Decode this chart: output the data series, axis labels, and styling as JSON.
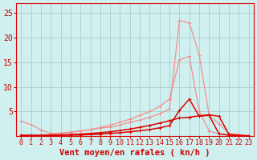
{
  "bg_color": "#cff0ee",
  "grid_color": "#a8cece",
  "x_values": [
    0,
    1,
    2,
    3,
    4,
    5,
    6,
    7,
    8,
    9,
    10,
    11,
    12,
    13,
    14,
    15,
    16,
    17,
    18,
    19,
    20,
    21,
    22,
    23
  ],
  "x_labels": [
    "0",
    "1",
    "2",
    "3",
    "4",
    "5",
    "6",
    "7",
    "8",
    "9",
    "10",
    "11",
    "12",
    "13",
    "14",
    "15",
    "16",
    "17",
    "18",
    "19",
    "20",
    "21",
    "22",
    "23"
  ],
  "ylim": [
    0,
    27
  ],
  "yticks": [
    5,
    10,
    15,
    20,
    25
  ],
  "line_light_peak_x": [
    0,
    1,
    2,
    3,
    4,
    5,
    6,
    7,
    8,
    9,
    10,
    11,
    12,
    13,
    14,
    15,
    16,
    17,
    18,
    19,
    20,
    21,
    22,
    23
  ],
  "line_light_peak_y": [
    3.0,
    2.3,
    1.2,
    0.5,
    0.6,
    0.8,
    1.0,
    1.3,
    1.6,
    1.8,
    2.2,
    2.8,
    3.2,
    3.8,
    4.5,
    5.5,
    23.5,
    23.0,
    16.5,
    4.2,
    2.5,
    0.5,
    0.3,
    0.1
  ],
  "line_light_ramp_x": [
    0,
    1,
    2,
    3,
    4,
    5,
    6,
    7,
    8,
    9,
    10,
    11,
    12,
    13,
    14,
    15,
    16,
    17,
    18,
    19,
    20,
    21,
    22,
    23
  ],
  "line_light_ramp_y": [
    0.1,
    0.15,
    0.2,
    0.3,
    0.5,
    0.7,
    1.0,
    1.3,
    1.7,
    2.2,
    2.8,
    3.4,
    4.2,
    5.0,
    6.0,
    7.5,
    15.5,
    16.2,
    5.0,
    1.0,
    0.4,
    0.2,
    0.1,
    0.0
  ],
  "line_dark_main_x": [
    0,
    1,
    2,
    3,
    4,
    5,
    6,
    7,
    8,
    9,
    10,
    11,
    12,
    13,
    14,
    15,
    16,
    17,
    18,
    19,
    20,
    21,
    22,
    23
  ],
  "line_dark_main_y": [
    0.15,
    0.1,
    0.08,
    0.1,
    0.12,
    0.15,
    0.2,
    0.28,
    0.38,
    0.5,
    0.65,
    0.85,
    1.05,
    1.3,
    1.65,
    2.1,
    5.2,
    7.5,
    4.0,
    4.2,
    0.4,
    0.15,
    0.05,
    0.02
  ],
  "line_dark_linear_x": [
    0,
    1,
    2,
    3,
    4,
    5,
    6,
    7,
    8,
    9,
    10,
    11,
    12,
    13,
    14,
    15,
    16,
    17,
    18,
    19,
    20,
    21,
    22,
    23
  ],
  "line_dark_linear_y": [
    0.05,
    0.07,
    0.1,
    0.15,
    0.2,
    0.28,
    0.38,
    0.5,
    0.65,
    0.85,
    1.1,
    1.4,
    1.75,
    2.15,
    2.6,
    3.1,
    3.65,
    3.8,
    4.1,
    4.3,
    4.0,
    0.3,
    0.1,
    0.02
  ],
  "light_color": "#f09090",
  "dark_color": "#dd0000",
  "xlabel": "Vent moyen/en rafales ( kn/h )",
  "xlabel_fontsize": 7.5,
  "tick_color": "#cc0000",
  "ytick_fontsize": 7,
  "xtick_fontsize": 6
}
